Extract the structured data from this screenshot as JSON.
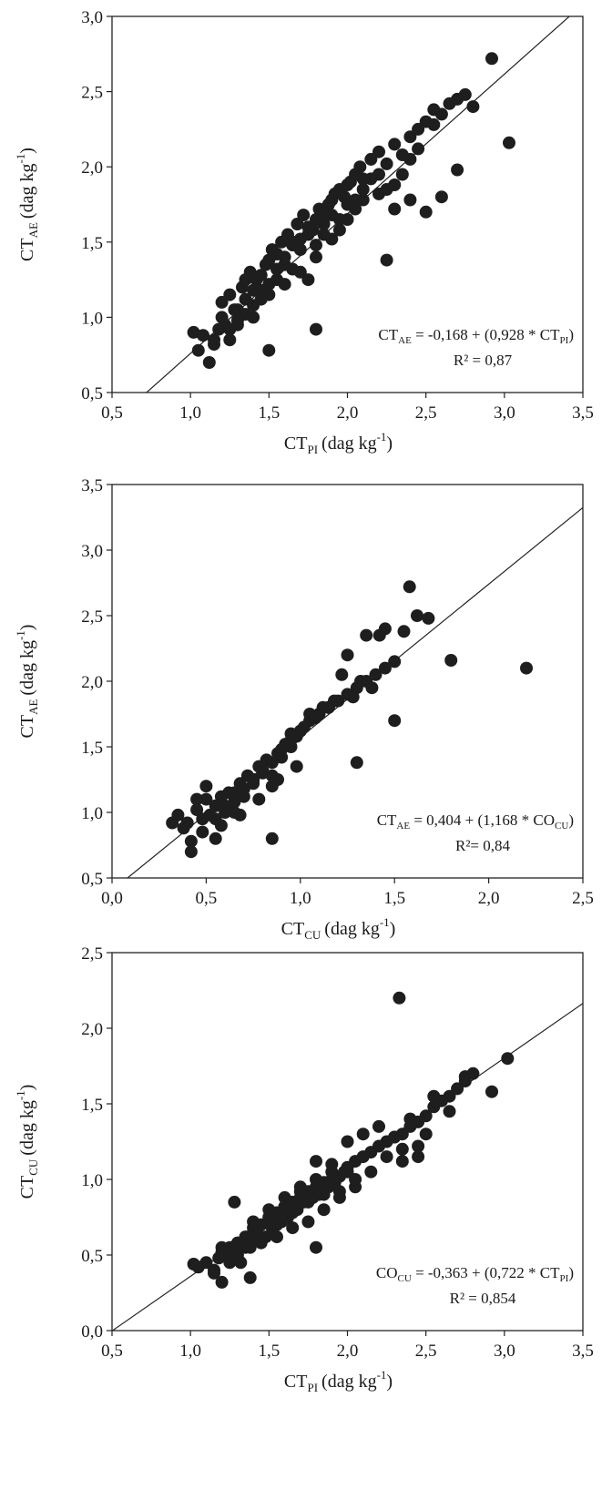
{
  "chart_data": [
    {
      "type": "scatter",
      "ylabel": {
        "main": "CT",
        "sub": "AE",
        "unit": "(dag kg",
        "sup": "-1",
        "close": ")"
      },
      "xlabel": {
        "main": "CT",
        "sub": "PI",
        "unit": "(dag kg",
        "sup": "-1",
        "close": ")"
      },
      "xlim": [
        0.5,
        3.5
      ],
      "ylim": [
        0.5,
        3.0
      ],
      "xticks": [
        "0,5",
        "1,0",
        "1,5",
        "2,0",
        "2,5",
        "3,0",
        "3,5"
      ],
      "yticks": [
        "0,5",
        "1,0",
        "1,5",
        "2,0",
        "2,5",
        "3,0"
      ],
      "equation": {
        "pre": "CT",
        "pre_sub": "AE",
        "body": " = -0,168 + (0,928 * CT",
        "post_sub": "PI",
        "close": ")"
      },
      "r2": "R² = 0,87",
      "fit": {
        "intercept": -0.168,
        "slope": 0.928
      },
      "series": [
        {
          "x": [
            1.02,
            1.05,
            1.08,
            1.12,
            1.15,
            1.18,
            1.2,
            1.22,
            1.25,
            1.28,
            1.3,
            1.33,
            1.35,
            1.38,
            1.4,
            1.42,
            1.45,
            1.48,
            1.5,
            1.52,
            1.55,
            1.58,
            1.6,
            1.62,
            1.65,
            1.68,
            1.7,
            1.72,
            1.75,
            1.78,
            1.8,
            1.82,
            1.85,
            1.88,
            1.9,
            1.92,
            1.95,
            1.98,
            2.0,
            2.02,
            2.05,
            2.08,
            2.1,
            2.15,
            2.2,
            2.25,
            2.3,
            2.35,
            2.4,
            2.45,
            2.5,
            2.55,
            2.6,
            2.65,
            2.7,
            2.75,
            2.8,
            1.25,
            1.3,
            1.35,
            1.4,
            1.45,
            1.5,
            1.55,
            1.6,
            1.65,
            1.7,
            1.75,
            1.8,
            1.85,
            1.9,
            1.95,
            2.0,
            2.05,
            2.1,
            2.2,
            2.3,
            2.4,
            1.2,
            1.3,
            1.4,
            1.5,
            1.6,
            1.7,
            1.8,
            1.9,
            2.0,
            2.1,
            2.2,
            2.3,
            2.4,
            2.5,
            2.6,
            1.15,
            1.25,
            1.35,
            1.45,
            1.55,
            1.65,
            1.75,
            1.85,
            1.95,
            2.05,
            2.15,
            2.25,
            2.35,
            2.45,
            2.55,
            2.7,
            2.92,
            3.03,
            2.25,
            1.8,
            1.5
          ],
          "y": [
            0.9,
            0.78,
            0.88,
            0.7,
            0.82,
            0.92,
            1.1,
            0.95,
            0.85,
            1.05,
            0.98,
            1.2,
            1.12,
            1.3,
            1.0,
            1.25,
            1.18,
            1.35,
            1.22,
            1.45,
            1.32,
            1.5,
            1.4,
            1.55,
            1.48,
            1.62,
            1.52,
            1.68,
            1.6,
            1.58,
            1.65,
            1.72,
            1.7,
            1.75,
            1.78,
            1.82,
            1.85,
            1.8,
            1.88,
            1.9,
            1.95,
            2.0,
            1.92,
            2.05,
            2.1,
            2.02,
            2.15,
            2.08,
            2.2,
            2.25,
            2.3,
            2.38,
            2.35,
            2.42,
            2.45,
            2.48,
            2.4,
            1.15,
            1.05,
            1.25,
            1.18,
            1.28,
            1.38,
            1.42,
            1.35,
            1.5,
            1.45,
            1.55,
            1.48,
            1.62,
            1.68,
            1.58,
            1.75,
            1.72,
            1.85,
            1.95,
            1.88,
            2.05,
            1.0,
            0.95,
            1.08,
            1.15,
            1.22,
            1.3,
            1.4,
            1.52,
            1.65,
            1.78,
            1.82,
            1.72,
            1.78,
            1.7,
            1.8,
            0.85,
            0.92,
            1.02,
            1.12,
            1.25,
            1.32,
            1.25,
            1.55,
            1.65,
            1.78,
            1.92,
            1.85,
            1.95,
            2.12,
            2.28,
            1.98,
            2.72,
            2.16,
            1.38,
            0.92,
            0.78
          ]
        }
      ]
    },
    {
      "type": "scatter",
      "ylabel": {
        "main": "CT",
        "sub": "AE",
        "unit": "(dag kg",
        "sup": "-1",
        "close": ")"
      },
      "xlabel": {
        "main": "CT",
        "sub": "CU",
        "unit": "(dag kg",
        "sup": "-1",
        "close": ")"
      },
      "xlim": [
        0.0,
        2.5
      ],
      "ylim": [
        0.5,
        3.5
      ],
      "xticks": [
        "0,0",
        "0,5",
        "1,0",
        "1,5",
        "2,0",
        "2,5"
      ],
      "yticks": [
        "0,5",
        "1,0",
        "1,5",
        "2,0",
        "2,5",
        "3,0",
        "3,5"
      ],
      "equation": {
        "pre": "CT",
        "pre_sub": "AE",
        "body": " = 0,404 + (1,168 * CO",
        "post_sub": "CU",
        "close": ")"
      },
      "r2": "R²= 0,84",
      "fit": {
        "intercept": 0.404,
        "slope": 1.168
      },
      "series": [
        {
          "x": [
            0.32,
            0.35,
            0.38,
            0.4,
            0.42,
            0.45,
            0.48,
            0.5,
            0.52,
            0.55,
            0.58,
            0.6,
            0.62,
            0.65,
            0.68,
            0.7,
            0.72,
            0.75,
            0.78,
            0.8,
            0.82,
            0.85,
            0.88,
            0.9,
            0.92,
            0.95,
            0.98,
            1.0,
            1.02,
            1.05,
            1.1,
            1.15,
            1.2,
            1.25,
            1.3,
            1.35,
            1.4,
            1.45,
            1.5,
            0.45,
            0.5,
            0.55,
            0.6,
            0.65,
            0.7,
            0.75,
            0.8,
            0.85,
            0.9,
            0.95,
            1.0,
            1.08,
            1.18,
            1.28,
            1.38,
            0.48,
            0.58,
            0.68,
            0.78,
            0.88,
            0.98,
            1.12,
            1.22,
            1.32,
            1.42,
            0.55,
            0.65,
            0.75,
            0.85,
            0.95,
            1.05,
            1.15,
            1.25,
            1.35,
            1.45,
            1.55,
            1.62,
            1.68,
            1.58,
            1.8,
            2.2,
            0.85,
            1.3,
            1.5,
            0.42
          ],
          "y": [
            0.92,
            0.98,
            0.88,
            0.92,
            0.78,
            1.02,
            0.95,
            1.1,
            0.98,
            1.05,
            1.12,
            1.0,
            1.15,
            1.08,
            1.22,
            1.18,
            1.28,
            1.25,
            1.35,
            1.32,
            1.4,
            1.38,
            1.45,
            1.48,
            1.52,
            1.55,
            1.58,
            1.62,
            1.65,
            1.7,
            1.75,
            1.8,
            1.85,
            1.9,
            1.95,
            2.0,
            2.05,
            2.1,
            2.15,
            1.1,
            1.2,
            0.95,
            1.05,
            1.15,
            1.12,
            1.22,
            1.3,
            1.2,
            1.42,
            1.5,
            1.62,
            1.72,
            1.85,
            1.88,
            1.95,
            0.85,
            0.9,
            0.98,
            1.1,
            1.25,
            1.35,
            1.8,
            2.05,
            2.0,
            2.35,
            0.8,
            1.0,
            1.25,
            1.28,
            1.6,
            1.75,
            1.8,
            2.2,
            2.35,
            2.4,
            2.38,
            2.5,
            2.48,
            2.72,
            2.16,
            2.1,
            0.8,
            1.38,
            1.7,
            0.7
          ]
        }
      ]
    },
    {
      "type": "scatter",
      "ylabel": {
        "main": "CT",
        "sub": "CU",
        "unit": "(dag kg",
        "sup": "-1",
        "close": ")"
      },
      "xlabel": {
        "main": "CT",
        "sub": "PI",
        "unit": "(dag kg",
        "sup": "-1",
        "close": ")"
      },
      "xlim": [
        0.5,
        3.5
      ],
      "ylim": [
        0.0,
        2.5
      ],
      "xticks": [
        "0,5",
        "1,0",
        "1,5",
        "2,0",
        "2,5",
        "3,0",
        "3,5"
      ],
      "yticks": [
        "0,0",
        "0,5",
        "1,0",
        "1,5",
        "2,0",
        "2,5"
      ],
      "equation": {
        "pre": "CO",
        "pre_sub": "CU",
        "body": " = -0,363 + (0,722 * CT",
        "post_sub": "PI",
        "close": ")"
      },
      "r2": "R² = 0,854",
      "fit": {
        "intercept": -0.363,
        "slope": 0.722
      },
      "series": [
        {
          "x": [
            1.02,
            1.05,
            1.1,
            1.15,
            1.18,
            1.2,
            1.22,
            1.25,
            1.28,
            1.3,
            1.32,
            1.35,
            1.38,
            1.4,
            1.42,
            1.45,
            1.48,
            1.5,
            1.52,
            1.55,
            1.58,
            1.6,
            1.62,
            1.65,
            1.68,
            1.7,
            1.72,
            1.75,
            1.78,
            1.8,
            1.82,
            1.85,
            1.88,
            1.9,
            1.92,
            1.95,
            1.98,
            2.0,
            2.05,
            2.1,
            2.15,
            2.2,
            2.25,
            2.3,
            2.35,
            2.4,
            2.45,
            2.5,
            2.55,
            2.6,
            2.65,
            2.7,
            2.75,
            2.8,
            2.92,
            3.02,
            1.25,
            1.35,
            1.45,
            1.55,
            1.65,
            1.75,
            1.85,
            1.95,
            2.05,
            2.15,
            2.25,
            2.35,
            2.45,
            1.2,
            1.3,
            1.4,
            1.5,
            1.6,
            1.7,
            1.8,
            1.9,
            2.0,
            2.1,
            2.2,
            2.3,
            2.4,
            2.5,
            1.15,
            1.25,
            1.35,
            1.45,
            1.55,
            1.65,
            1.75,
            1.85,
            1.95,
            2.05,
            2.35,
            2.45,
            2.55,
            2.65,
            2.75,
            1.28,
            1.38,
            1.8,
            2.33,
            1.2,
            1.3,
            1.4,
            1.5,
            1.6,
            1.7,
            1.8,
            1.9,
            2.0
          ],
          "y": [
            0.44,
            0.42,
            0.45,
            0.4,
            0.48,
            0.32,
            0.52,
            0.55,
            0.5,
            0.58,
            0.45,
            0.62,
            0.55,
            0.65,
            0.6,
            0.7,
            0.62,
            0.75,
            0.68,
            0.78,
            0.72,
            0.82,
            0.75,
            0.85,
            0.8,
            0.88,
            0.85,
            0.92,
            0.88,
            0.95,
            0.9,
            0.98,
            0.95,
            1.0,
            0.98,
            1.02,
            1.05,
            1.08,
            1.12,
            1.15,
            1.18,
            1.22,
            1.25,
            1.28,
            1.3,
            1.35,
            1.38,
            1.42,
            1.48,
            1.52,
            1.55,
            1.6,
            1.65,
            1.7,
            1.58,
            1.8,
            0.45,
            0.6,
            0.62,
            0.7,
            0.78,
            0.85,
            0.9,
            0.92,
            1.0,
            1.05,
            1.15,
            1.2,
            1.22,
            0.55,
            0.5,
            0.68,
            0.75,
            0.82,
            0.95,
            1.0,
            1.1,
            1.25,
            1.3,
            1.35,
            1.28,
            1.4,
            1.3,
            0.38,
            0.48,
            0.55,
            0.58,
            0.62,
            0.68,
            0.72,
            0.8,
            0.88,
            0.95,
            1.12,
            1.15,
            1.55,
            1.45,
            1.68,
            0.85,
            0.35,
            0.55,
            2.2,
            0.52,
            0.58,
            0.72,
            0.8,
            0.88,
            0.92,
            1.12,
            1.05,
            1.05
          ]
        }
      ]
    }
  ]
}
